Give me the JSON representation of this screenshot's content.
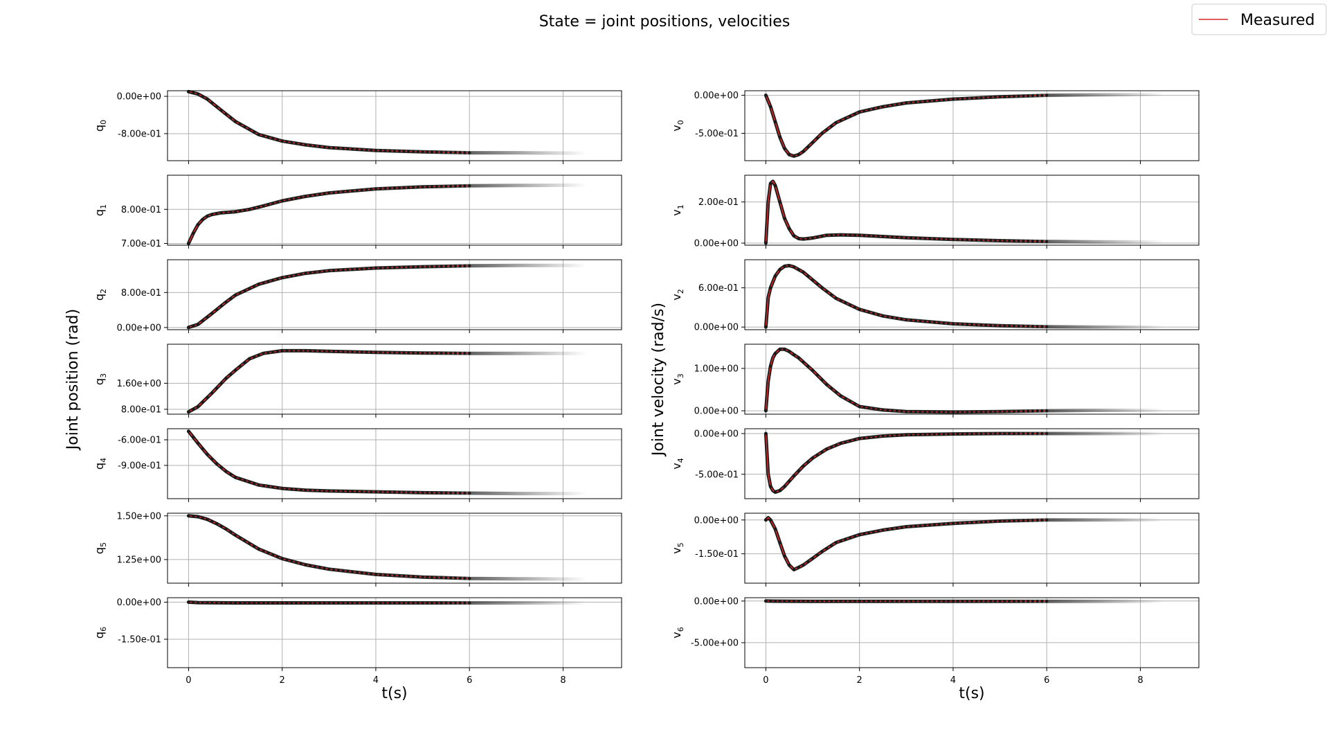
{
  "title": "State = joint positions, velocities",
  "legend": {
    "label": "Measured",
    "color": "#d62728",
    "placement": "top-right"
  },
  "colors": {
    "measured": "#d62728",
    "markers": "#1a1a1a",
    "grid": "#b0b0b0",
    "prediction_fan": "#000000"
  },
  "chart_data": [
    {
      "type": "line",
      "title": "",
      "xlabel": "t(s)",
      "ylabel": "Joint position (rad)",
      "xlim": [
        -0.45,
        9.25
      ],
      "xticks": [
        0,
        2,
        4,
        6,
        8
      ],
      "xtick_labels": [
        "0",
        "2",
        "4",
        "6",
        "8"
      ],
      "grid": true,
      "panels": [
        {
          "name": "q",
          "sub": "0",
          "ylim": [
            -1.38,
            0.12
          ],
          "yticks": [
            0.0,
            -0.8
          ],
          "ytick_labels": [
            "0.00e+00",
            "-8.00e-01"
          ],
          "series": [
            {
              "name": "Measured",
              "x": [
                0,
                0.2,
                0.4,
                0.6,
                0.8,
                1.0,
                1.5,
                2.0,
                2.5,
                3.0,
                4.0,
                5.0,
                6.0,
                7.0,
                8.5
              ],
              "y": [
                0.1,
                0.05,
                -0.06,
                -0.22,
                -0.38,
                -0.54,
                -0.82,
                -0.96,
                -1.04,
                -1.1,
                -1.16,
                -1.19,
                -1.21,
                -1.21,
                -1.22
              ]
            }
          ]
        },
        {
          "name": "q",
          "sub": "1",
          "ylim": [
            0.695,
            0.9
          ],
          "yticks": [
            0.8,
            0.7
          ],
          "ytick_labels": [
            "8.00e-01",
            "7.00e-01"
          ],
          "series": [
            {
              "name": "Measured",
              "x": [
                0,
                0.1,
                0.2,
                0.3,
                0.4,
                0.5,
                0.7,
                1.0,
                1.3,
                1.6,
                2.0,
                2.5,
                3.0,
                4.0,
                5.0,
                6.0,
                7.0,
                8.5
              ],
              "y": [
                0.7,
                0.73,
                0.755,
                0.77,
                0.78,
                0.785,
                0.79,
                0.793,
                0.8,
                0.81,
                0.825,
                0.838,
                0.848,
                0.86,
                0.866,
                0.869,
                0.87,
                0.871
              ]
            }
          ]
        },
        {
          "name": "q",
          "sub": "2",
          "ylim": [
            -0.05,
            1.55
          ],
          "yticks": [
            0.8,
            0.0
          ],
          "ytick_labels": [
            "8.00e-01",
            "0.00e+00"
          ],
          "series": [
            {
              "name": "Measured",
              "x": [
                0,
                0.2,
                0.5,
                0.8,
                1.0,
                1.5,
                2.0,
                2.5,
                3.0,
                4.0,
                5.0,
                6.0,
                7.0,
                8.5
              ],
              "y": [
                0,
                0.07,
                0.32,
                0.58,
                0.74,
                0.99,
                1.14,
                1.24,
                1.3,
                1.36,
                1.39,
                1.41,
                1.42,
                1.42
              ]
            }
          ]
        },
        {
          "name": "q",
          "sub": "3",
          "ylim": [
            0.65,
            2.8
          ],
          "yticks": [
            1.6,
            0.8
          ],
          "ytick_labels": [
            "1.60e+00",
            "8.00e-01"
          ],
          "series": [
            {
              "name": "Measured",
              "x": [
                0,
                0.2,
                0.5,
                0.8,
                1.0,
                1.3,
                1.6,
                2.0,
                2.5,
                3.0,
                4.0,
                5.0,
                6.0,
                7.0,
                8.5
              ],
              "y": [
                0.72,
                0.88,
                1.3,
                1.75,
                2.0,
                2.35,
                2.52,
                2.6,
                2.6,
                2.58,
                2.55,
                2.53,
                2.52,
                2.52,
                2.52
              ]
            }
          ]
        },
        {
          "name": "q",
          "sub": "4",
          "ylim": [
            -1.29,
            -0.47
          ],
          "yticks": [
            -0.6,
            -0.9
          ],
          "ytick_labels": [
            "-6.00e-01",
            "-9.00e-01"
          ],
          "series": [
            {
              "name": "Measured",
              "x": [
                0,
                0.2,
                0.4,
                0.6,
                0.8,
                1.0,
                1.5,
                2.0,
                2.5,
                3.0,
                4.0,
                5.0,
                6.0,
                7.0,
                8.5
              ],
              "y": [
                -0.5,
                -0.64,
                -0.77,
                -0.88,
                -0.97,
                -1.04,
                -1.13,
                -1.17,
                -1.19,
                -1.2,
                -1.21,
                -1.22,
                -1.225,
                -1.23,
                -1.23
              ]
            }
          ]
        },
        {
          "name": "q",
          "sub": "5",
          "ylim": [
            1.115,
            1.515
          ],
          "yticks": [
            1.5,
            1.25
          ],
          "ytick_labels": [
            "1.50e+00",
            "1.25e+00"
          ],
          "series": [
            {
              "name": "Measured",
              "x": [
                0,
                0.2,
                0.4,
                0.6,
                0.8,
                1.0,
                1.5,
                2.0,
                2.5,
                3.0,
                4.0,
                5.0,
                6.0,
                7.0,
                8.5
              ],
              "y": [
                1.5,
                1.495,
                1.48,
                1.455,
                1.425,
                1.39,
                1.31,
                1.255,
                1.22,
                1.195,
                1.165,
                1.15,
                1.142,
                1.14,
                1.138
              ]
            }
          ]
        },
        {
          "name": "q",
          "sub": "6",
          "ylim": [
            -0.265,
            0.018
          ],
          "yticks": [
            0.0,
            -0.15
          ],
          "ytick_labels": [
            "0.00e+00",
            "-1.50e-01"
          ],
          "series": [
            {
              "name": "Measured",
              "x": [
                0,
                0.2,
                1,
                2,
                4,
                6,
                8.5
              ],
              "y": [
                0,
                -0.002,
                -0.003,
                -0.003,
                -0.003,
                -0.003,
                -0.003
              ]
            }
          ]
        }
      ]
    },
    {
      "type": "line",
      "title": "",
      "xlabel": "t(s)",
      "ylabel": "Joint velocity (rad/s)",
      "xlim": [
        -0.45,
        9.25
      ],
      "xticks": [
        0,
        2,
        4,
        6,
        8
      ],
      "xtick_labels": [
        "0",
        "2",
        "4",
        "6",
        "8"
      ],
      "grid": true,
      "panels": [
        {
          "name": "v",
          "sub": "0",
          "ylim": [
            -0.86,
            0.06
          ],
          "yticks": [
            0.0,
            -0.5
          ],
          "ytick_labels": [
            "0.00e+00",
            "-5.00e-01"
          ],
          "series": [
            {
              "name": "Measured",
              "x": [
                0,
                0.1,
                0.2,
                0.3,
                0.4,
                0.5,
                0.6,
                0.7,
                0.8,
                1.0,
                1.2,
                1.5,
                2.0,
                2.5,
                3.0,
                4.0,
                5.0,
                6.0,
                7.0,
                8.5
              ],
              "y": [
                0,
                -0.15,
                -0.35,
                -0.55,
                -0.7,
                -0.78,
                -0.8,
                -0.78,
                -0.74,
                -0.62,
                -0.5,
                -0.36,
                -0.22,
                -0.15,
                -0.1,
                -0.05,
                -0.02,
                0,
                0.005,
                0.01
              ]
            }
          ]
        },
        {
          "name": "v",
          "sub": "1",
          "ylim": [
            -0.01,
            0.33
          ],
          "yticks": [
            0.2,
            0.0
          ],
          "ytick_labels": [
            "2.00e-01",
            "0.00e+00"
          ],
          "series": [
            {
              "name": "Measured",
              "x": [
                0,
                0.05,
                0.1,
                0.15,
                0.2,
                0.3,
                0.4,
                0.5,
                0.6,
                0.7,
                0.8,
                1.0,
                1.3,
                1.6,
                2.0,
                2.5,
                3.0,
                4.0,
                5.0,
                6.0,
                7.0,
                8.5
              ],
              "y": [
                0,
                0.2,
                0.29,
                0.3,
                0.28,
                0.2,
                0.12,
                0.07,
                0.035,
                0.022,
                0.02,
                0.025,
                0.038,
                0.04,
                0.038,
                0.032,
                0.026,
                0.018,
                0.012,
                0.008,
                0.006,
                0.005
              ]
            }
          ]
        },
        {
          "name": "v",
          "sub": "2",
          "ylim": [
            -0.04,
            1.03
          ],
          "yticks": [
            0.6,
            0.0
          ],
          "ytick_labels": [
            "6.00e-01",
            "0.00e+00"
          ],
          "series": [
            {
              "name": "Measured",
              "x": [
                0,
                0.05,
                0.1,
                0.2,
                0.3,
                0.4,
                0.5,
                0.6,
                0.8,
                1.0,
                1.2,
                1.5,
                2.0,
                2.5,
                3.0,
                4.0,
                5.0,
                6.0,
                7.0,
                8.5
              ],
              "y": [
                0,
                0.45,
                0.6,
                0.78,
                0.88,
                0.93,
                0.94,
                0.92,
                0.84,
                0.72,
                0.6,
                0.44,
                0.27,
                0.17,
                0.11,
                0.05,
                0.02,
                0.005,
                0,
                0
              ]
            }
          ]
        },
        {
          "name": "v",
          "sub": "3",
          "ylim": [
            -0.08,
            1.57
          ],
          "yticks": [
            1.0,
            0.0
          ],
          "ytick_labels": [
            "1.00e+00",
            "0.00e+00"
          ],
          "series": [
            {
              "name": "Measured",
              "x": [
                0,
                0.05,
                0.1,
                0.15,
                0.2,
                0.3,
                0.4,
                0.5,
                0.6,
                0.7,
                0.8,
                1.0,
                1.3,
                1.6,
                2.0,
                2.5,
                3.0,
                4.0,
                5.0,
                6.0,
                7.0,
                8.5
              ],
              "y": [
                0,
                0.7,
                1.05,
                1.25,
                1.35,
                1.45,
                1.45,
                1.4,
                1.32,
                1.25,
                1.15,
                0.95,
                0.62,
                0.35,
                0.1,
                0.02,
                -0.02,
                -0.03,
                -0.02,
                0,
                0.01,
                0.01
              ]
            }
          ]
        },
        {
          "name": "v",
          "sub": "4",
          "ylim": [
            -0.8,
            0.06
          ],
          "yticks": [
            0.0,
            -0.5
          ],
          "ytick_labels": [
            "0.00e+00",
            "-5.00e-01"
          ],
          "series": [
            {
              "name": "Measured",
              "x": [
                0,
                0.05,
                0.1,
                0.15,
                0.2,
                0.3,
                0.4,
                0.6,
                0.8,
                1.0,
                1.3,
                1.6,
                2.0,
                2.5,
                3.0,
                4.0,
                5.0,
                6.0,
                7.0,
                8.5
              ],
              "y": [
                0,
                -0.5,
                -0.65,
                -0.7,
                -0.72,
                -0.7,
                -0.65,
                -0.52,
                -0.4,
                -0.3,
                -0.19,
                -0.12,
                -0.06,
                -0.03,
                -0.015,
                -0.005,
                0,
                0,
                0,
                0
              ]
            }
          ]
        },
        {
          "name": "v",
          "sub": "5",
          "ylim": [
            -0.28,
            0.03
          ],
          "yticks": [
            0.0,
            -0.15
          ],
          "ytick_labels": [
            "0.00e+00",
            "-1.50e-01"
          ],
          "series": [
            {
              "name": "Measured",
              "x": [
                0,
                0.05,
                0.1,
                0.2,
                0.3,
                0.4,
                0.5,
                0.6,
                0.7,
                0.8,
                1.0,
                1.2,
                1.5,
                2.0,
                2.5,
                3.0,
                4.0,
                5.0,
                6.0,
                7.0,
                8.5
              ],
              "y": [
                0,
                0.01,
                0,
                -0.04,
                -0.1,
                -0.16,
                -0.2,
                -0.22,
                -0.21,
                -0.2,
                -0.17,
                -0.14,
                -0.1,
                -0.065,
                -0.045,
                -0.03,
                -0.015,
                -0.005,
                0,
                0,
                0
              ]
            }
          ]
        },
        {
          "name": "v",
          "sub": "6",
          "ylim": [
            -8.0,
            0.4
          ],
          "yticks": [
            0.0,
            -5.0
          ],
          "ytick_labels": [
            "0.00e+00",
            "-5.00e+00"
          ],
          "series": [
            {
              "name": "Measured",
              "x": [
                0,
                0.2,
                1,
                2,
                4,
                6,
                8.5
              ],
              "y": [
                0,
                -0.02,
                -0.03,
                -0.03,
                -0.03,
                -0.03,
                -0.03
              ]
            }
          ]
        }
      ]
    }
  ]
}
